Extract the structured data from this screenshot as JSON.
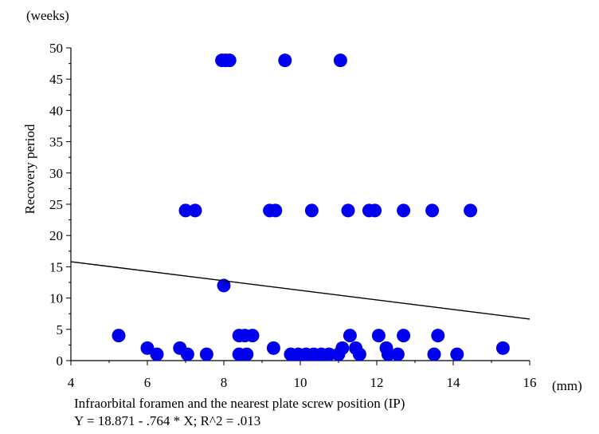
{
  "chart_data": {
    "type": "scatter",
    "title": "",
    "xlabel": "Infraorbital foramen and the nearest plate screw position (IP)",
    "ylabel": "Recovery period",
    "x_unit": "(mm)",
    "y_unit": "(weeks)",
    "xlim": [
      4,
      16
    ],
    "ylim": [
      0,
      50
    ],
    "x_ticks": [
      "4",
      "6",
      "8",
      "10",
      "12",
      "14",
      "16"
    ],
    "y_ticks": [
      "0",
      "5",
      "10",
      "15",
      "20",
      "25",
      "30",
      "35",
      "40",
      "45",
      "50"
    ],
    "grid": false,
    "regression": {
      "intercept": 18.871,
      "slope": -0.764,
      "equation": "Y = 18.871 - .764 * X; R^2 = .013"
    },
    "marker_color": "#0000ee",
    "points": [
      {
        "x": 7.95,
        "y": 48
      },
      {
        "x": 8.05,
        "y": 48
      },
      {
        "x": 8.15,
        "y": 48
      },
      {
        "x": 9.6,
        "y": 48
      },
      {
        "x": 11.05,
        "y": 48
      },
      {
        "x": 7.0,
        "y": 24
      },
      {
        "x": 7.25,
        "y": 24
      },
      {
        "x": 9.2,
        "y": 24
      },
      {
        "x": 9.35,
        "y": 24
      },
      {
        "x": 10.3,
        "y": 24
      },
      {
        "x": 11.25,
        "y": 24
      },
      {
        "x": 11.8,
        "y": 24
      },
      {
        "x": 11.95,
        "y": 24
      },
      {
        "x": 12.7,
        "y": 24
      },
      {
        "x": 13.45,
        "y": 24
      },
      {
        "x": 14.45,
        "y": 24
      },
      {
        "x": 8.0,
        "y": 12
      },
      {
        "x": 5.25,
        "y": 4
      },
      {
        "x": 8.4,
        "y": 4
      },
      {
        "x": 8.55,
        "y": 4
      },
      {
        "x": 8.75,
        "y": 4
      },
      {
        "x": 11.3,
        "y": 4
      },
      {
        "x": 12.05,
        "y": 4
      },
      {
        "x": 12.7,
        "y": 4
      },
      {
        "x": 13.6,
        "y": 4
      },
      {
        "x": 6.0,
        "y": 2
      },
      {
        "x": 6.85,
        "y": 2
      },
      {
        "x": 9.3,
        "y": 2
      },
      {
        "x": 11.1,
        "y": 2
      },
      {
        "x": 11.45,
        "y": 2
      },
      {
        "x": 12.25,
        "y": 2
      },
      {
        "x": 15.3,
        "y": 2
      },
      {
        "x": 6.25,
        "y": 1
      },
      {
        "x": 7.05,
        "y": 1
      },
      {
        "x": 7.55,
        "y": 1
      },
      {
        "x": 8.4,
        "y": 1
      },
      {
        "x": 8.6,
        "y": 1
      },
      {
        "x": 9.75,
        "y": 1
      },
      {
        "x": 9.95,
        "y": 1
      },
      {
        "x": 10.15,
        "y": 1
      },
      {
        "x": 10.35,
        "y": 1
      },
      {
        "x": 10.55,
        "y": 1
      },
      {
        "x": 10.75,
        "y": 1
      },
      {
        "x": 11.0,
        "y": 1
      },
      {
        "x": 11.55,
        "y": 1
      },
      {
        "x": 12.3,
        "y": 1
      },
      {
        "x": 12.55,
        "y": 1
      },
      {
        "x": 13.5,
        "y": 1
      },
      {
        "x": 14.1,
        "y": 1
      }
    ]
  }
}
